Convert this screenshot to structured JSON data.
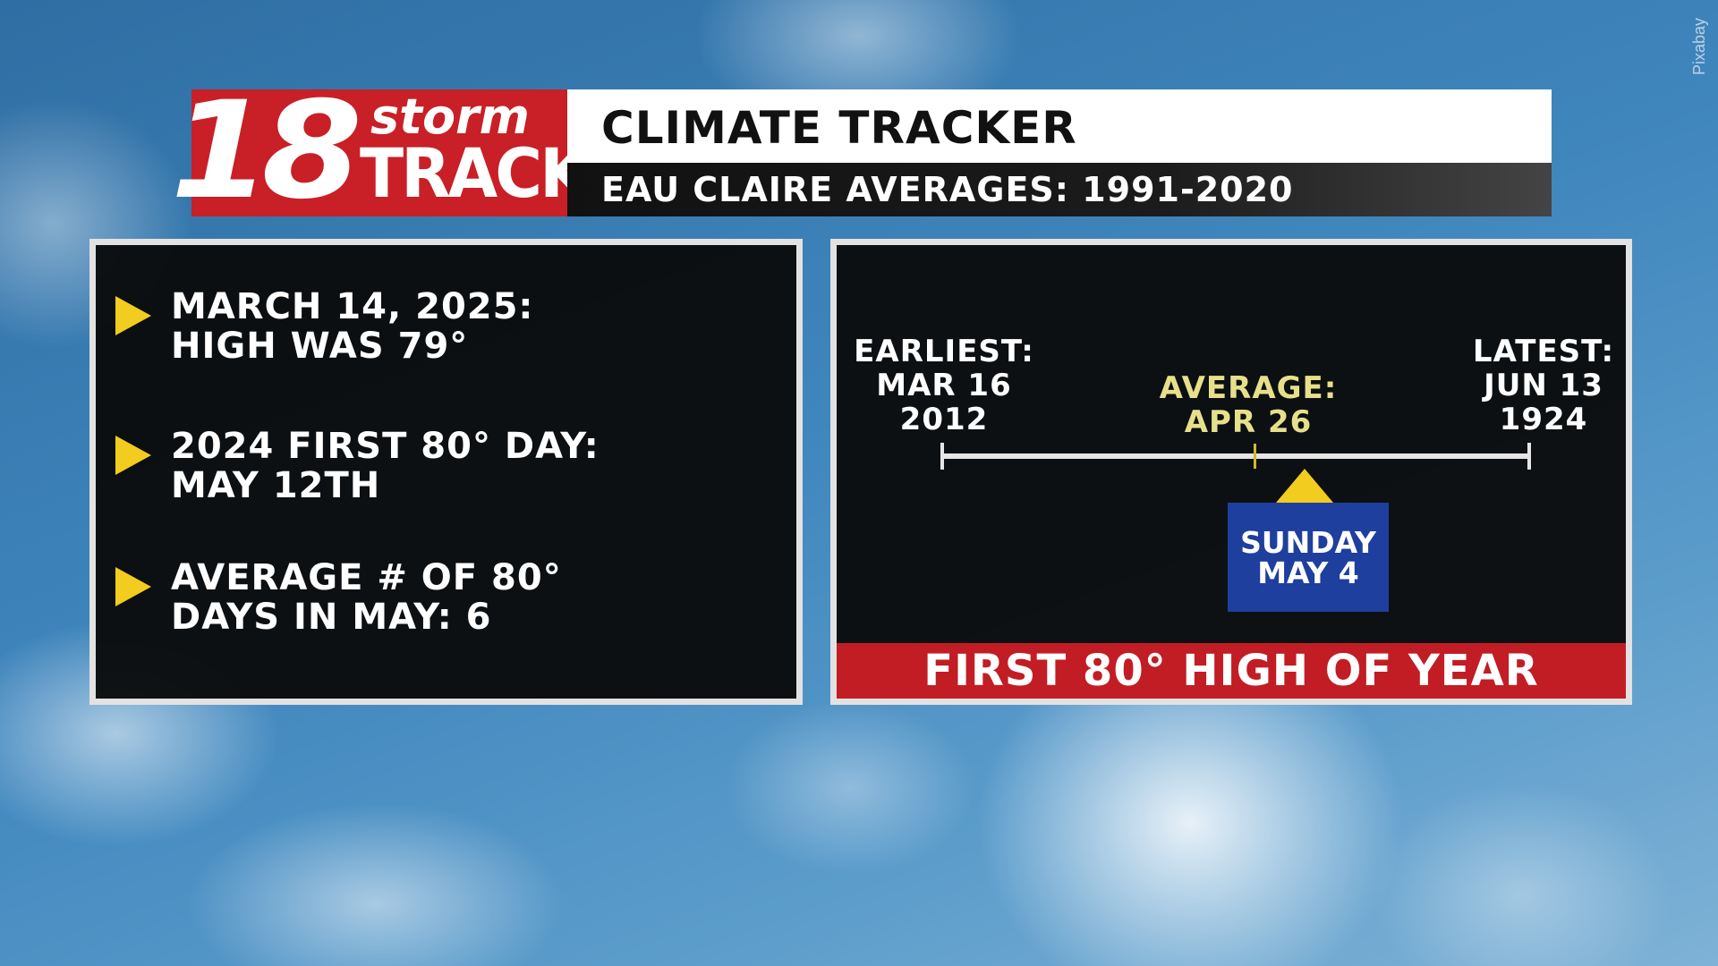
{
  "credit": "Pixabay",
  "logo": {
    "number": "18",
    "word_top": "storm",
    "word_bottom": "TRACK"
  },
  "header": {
    "title": "CLIMATE TRACKER",
    "subtitle": "EAU CLAIRE AVERAGES: 1991-2020"
  },
  "facts": [
    "MARCH 14, 2025:\nHIGH WAS 79°",
    "2024 FIRST 80° DAY:\nMAY 12TH",
    "AVERAGE # OF 80°\nDAYS IN MAY: 6"
  ],
  "timeline": {
    "earliest": "EARLIEST:\nMAR 16\n2012",
    "average": "AVERAGE:\nAPR 26",
    "latest": "LATEST:\nJUN 13\n1924",
    "forecast": "SUNDAY\nMAY 4",
    "banner": "FIRST 80° HIGH OF YEAR"
  },
  "colors": {
    "brand_red": "#c91f26",
    "accent_yellow": "#f2cc1e",
    "average_text": "#e7e08a",
    "forecast_blue": "#1f3f9e"
  },
  "icons": {
    "bullet": "triangle-right-icon",
    "marker": "triangle-up-icon"
  }
}
